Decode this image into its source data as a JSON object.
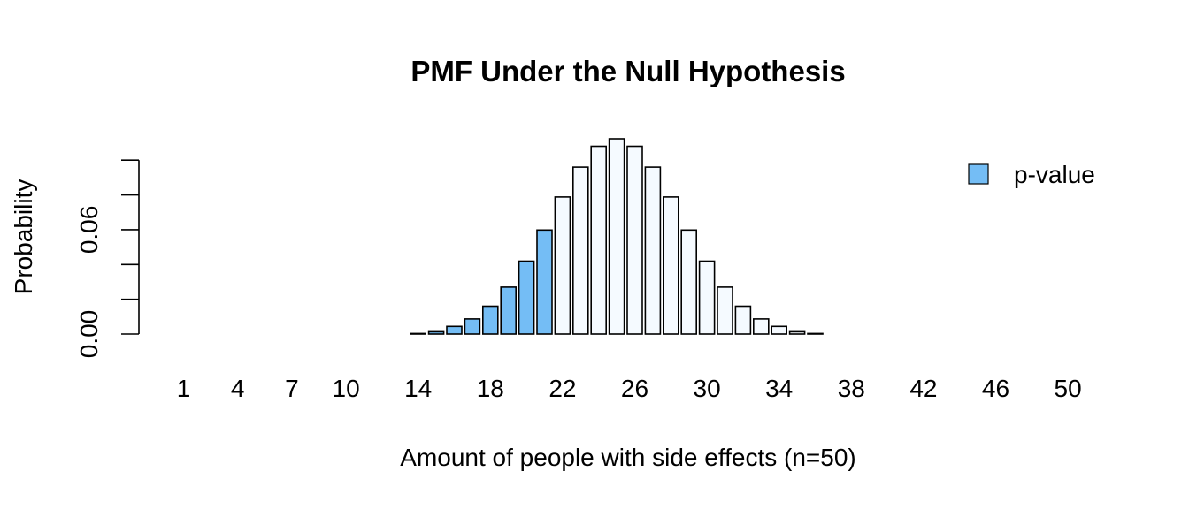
{
  "chart_data": {
    "type": "bar",
    "title": "PMF Under the Null Hypothesis",
    "xlabel": "Amount of people with side effects (n=50)",
    "ylabel": "Probability",
    "x": [
      1,
      2,
      3,
      4,
      5,
      6,
      7,
      8,
      9,
      10,
      11,
      12,
      13,
      14,
      15,
      16,
      17,
      18,
      19,
      20,
      21,
      22,
      23,
      24,
      25,
      26,
      27,
      28,
      29,
      30,
      31,
      32,
      33,
      34,
      35,
      36,
      37,
      38,
      39,
      40,
      41,
      42,
      43,
      44,
      45,
      46,
      47,
      48,
      49,
      50
    ],
    "values": [
      0,
      0,
      0,
      0,
      0,
      0,
      0,
      0,
      0,
      0,
      0,
      0,
      0,
      0.0003,
      0.0013,
      0.0044,
      0.0087,
      0.016,
      0.027,
      0.0419,
      0.0598,
      0.0788,
      0.096,
      0.108,
      0.1123,
      0.108,
      0.096,
      0.0788,
      0.0598,
      0.0419,
      0.027,
      0.016,
      0.0087,
      0.0044,
      0.0013,
      0.0003,
      0,
      0,
      0,
      0,
      0,
      0,
      0,
      0,
      0,
      0,
      0,
      0,
      0,
      0
    ],
    "highlighted_x": [
      14,
      15,
      16,
      17,
      18,
      19,
      20,
      21
    ],
    "x_tick_labels": [
      "1",
      "4",
      "7",
      "10",
      "14",
      "18",
      "22",
      "26",
      "30",
      "34",
      "38",
      "42",
      "46",
      "50"
    ],
    "x_tick_values": [
      1,
      4,
      7,
      10,
      14,
      18,
      22,
      26,
      30,
      34,
      38,
      42,
      46,
      50
    ],
    "y_ticks": [
      0,
      0.02,
      0.04,
      0.06,
      0.08,
      0.1
    ],
    "y_tick_labels": [
      "0.00",
      "",
      "",
      "0.06",
      "",
      ""
    ],
    "ylim": [
      0,
      0.1123
    ],
    "legend": {
      "position": "top-right",
      "entries": [
        {
          "label": "p-value",
          "color": "#74BDF5"
        }
      ]
    },
    "colors": {
      "highlight": "#74BDF5",
      "normal": "#F5FAFF",
      "stroke": "#000000"
    }
  }
}
